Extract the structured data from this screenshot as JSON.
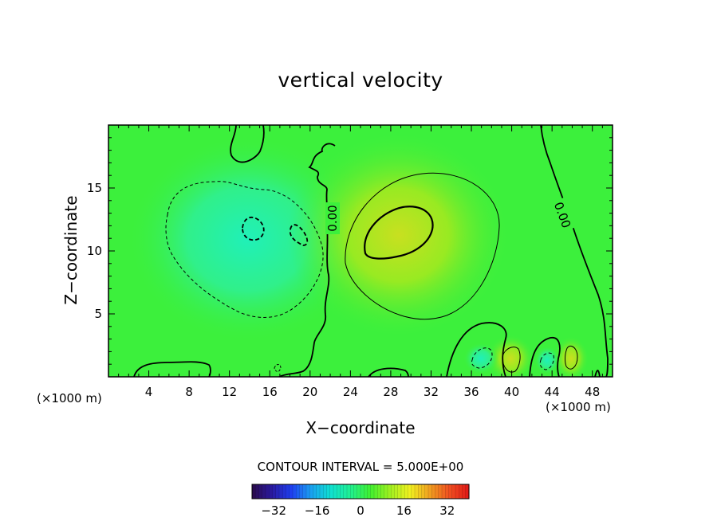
{
  "chart_data": {
    "type": "heatmap",
    "title": "vertical velocity",
    "xlabel": "X−coordinate",
    "ylabel": "Z−coordinate",
    "x_units": "(×1000 m)",
    "xlim": [
      0,
      50
    ],
    "ylim": [
      0,
      20
    ],
    "x_ticks": [
      4,
      8,
      12,
      16,
      20,
      24,
      28,
      32,
      36,
      40,
      44,
      48
    ],
    "y_ticks": [
      5,
      10,
      15
    ],
    "contour_interval_label": "CONTOUR INTERVAL = 5.000E+00",
    "contour_labels": [
      "0.00",
      "0.00"
    ],
    "colorbar": {
      "range": [
        -40,
        40
      ],
      "ticks": [
        -32,
        -16,
        0,
        16,
        32
      ],
      "tick_labels": [
        "−32",
        "−16",
        "0",
        "16",
        "32"
      ],
      "colors": [
        "#2a0a4a",
        "#2a1aa0",
        "#1f3ff0",
        "#1aa0f0",
        "#10e0d0",
        "#20f090",
        "#40f030",
        "#a0f020",
        "#f0f020",
        "#f0a020",
        "#f05020",
        "#e01818"
      ]
    },
    "features": [
      {
        "kind": "updraft",
        "x": 29,
        "z": 11.5,
        "peak": 7
      },
      {
        "kind": "downdraft",
        "x": 14.5,
        "z": 11.5,
        "peak": -7
      },
      {
        "kind": "downdraft",
        "x": 19,
        "z": 11,
        "peak": -6
      },
      {
        "kind": "updraft",
        "x": 40,
        "z": 1.5,
        "peak": 6
      },
      {
        "kind": "updraft",
        "x": 46,
        "z": 1.5,
        "peak": 6
      },
      {
        "kind": "downdraft",
        "x": 37.5,
        "z": 1.5,
        "peak": -4
      },
      {
        "kind": "downdraft",
        "x": 43.5,
        "z": 1.5,
        "peak": -4
      }
    ],
    "colors": {
      "background_field": "#3cf03c",
      "updraft_core": "#c8e020",
      "downdraft_core": "#20f0b8"
    }
  }
}
